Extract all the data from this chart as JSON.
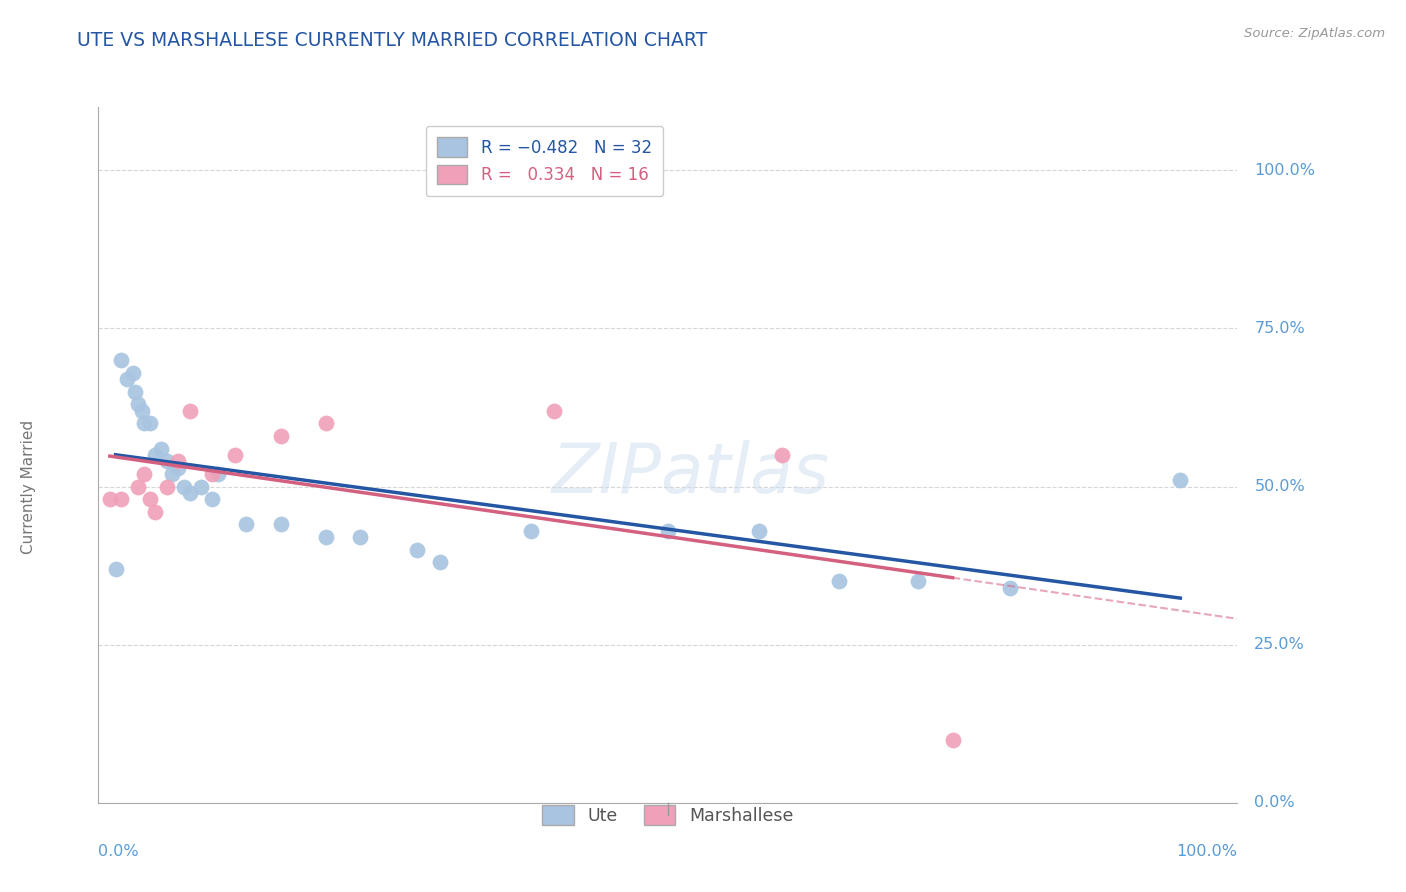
{
  "title": "UTE VS MARSHALLESE CURRENTLY MARRIED CORRELATION CHART",
  "source": "Source: ZipAtlas.com",
  "ylabel": "Currently Married",
  "watermark": "ZIPatlas",
  "ute_R": -0.482,
  "ute_N": 32,
  "marshallese_R": 0.334,
  "marshallese_N": 16,
  "ute_color": "#a8c4e0",
  "ute_line_color": "#2456a4",
  "marshallese_color": "#f0a0b8",
  "marshallese_line_color": "#d46080",
  "background_color": "#ffffff",
  "grid_color": "#cccccc",
  "title_color": "#2456a4",
  "right_label_color": "#5b9bd5",
  "ute_x": [
    1.5,
    2.0,
    2.5,
    3.0,
    3.2,
    3.5,
    3.8,
    4.0,
    4.5,
    5.0,
    5.5,
    6.0,
    6.5,
    7.0,
    7.5,
    8.0,
    9.0,
    10.0,
    10.5,
    13.0,
    16.0,
    20.0,
    23.0,
    28.0,
    30.0,
    38.0,
    50.0,
    58.0,
    65.0,
    72.0,
    80.0,
    95.0
  ],
  "ute_y": [
    37.0,
    70.0,
    67.0,
    68.0,
    65.0,
    63.0,
    62.0,
    60.0,
    60.0,
    55.0,
    56.0,
    54.0,
    52.0,
    53.0,
    50.0,
    49.0,
    50.0,
    48.0,
    52.0,
    44.0,
    44.0,
    42.0,
    42.0,
    40.0,
    38.0,
    43.0,
    43.0,
    43.0,
    35.0,
    35.0,
    34.0,
    51.0
  ],
  "marshallese_x": [
    1.0,
    2.0,
    3.5,
    4.0,
    4.5,
    5.0,
    6.0,
    7.0,
    8.0,
    10.0,
    12.0,
    16.0,
    20.0,
    40.0,
    60.0,
    75.0
  ],
  "marshallese_y": [
    48.0,
    48.0,
    50.0,
    52.0,
    48.0,
    46.0,
    50.0,
    54.0,
    62.0,
    52.0,
    55.0,
    58.0,
    60.0,
    62.0,
    55.0,
    10.0
  ],
  "xlim": [
    0.0,
    100.0
  ],
  "ylim": [
    0.0,
    110.0
  ],
  "ytick_values": [
    0.0,
    25.0,
    50.0,
    75.0,
    100.0
  ],
  "ytick_labels": [
    "0.0%",
    "25.0%",
    "50.0%",
    "75.0%",
    "100.0%"
  ]
}
